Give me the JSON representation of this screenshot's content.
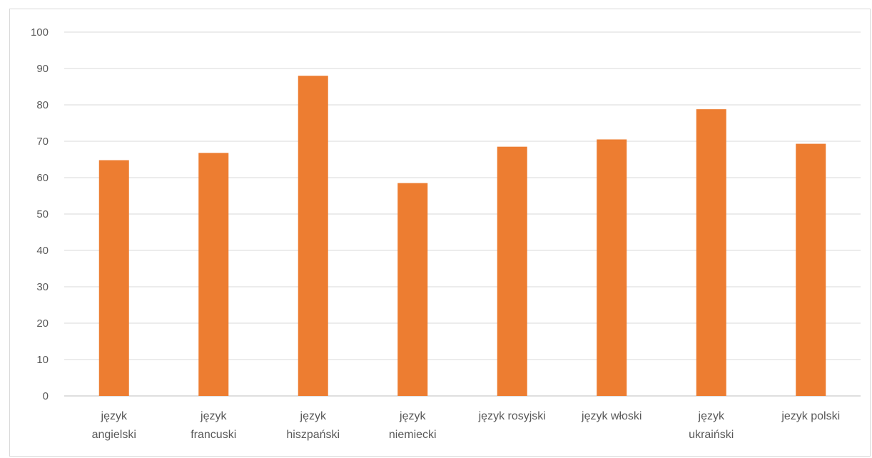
{
  "chart_data": {
    "type": "bar",
    "title": "",
    "xlabel": "",
    "ylabel": "",
    "ylim": [
      0,
      100
    ],
    "yticks": [
      0,
      10,
      20,
      30,
      40,
      50,
      60,
      70,
      80,
      90,
      100
    ],
    "grid": true,
    "legend": "none",
    "bar_color": "#ED7D31",
    "categories": [
      [
        "język",
        "angielski"
      ],
      [
        "język",
        "francuski"
      ],
      [
        "język",
        "hiszpański"
      ],
      [
        "język",
        "niemiecki"
      ],
      [
        "język rosyjski"
      ],
      [
        "język włoski"
      ],
      [
        "język",
        "ukraiński"
      ],
      [
        "jezyk polski"
      ]
    ],
    "values": [
      64.8,
      66.8,
      88.0,
      58.5,
      68.5,
      70.5,
      78.8,
      69.3
    ]
  }
}
